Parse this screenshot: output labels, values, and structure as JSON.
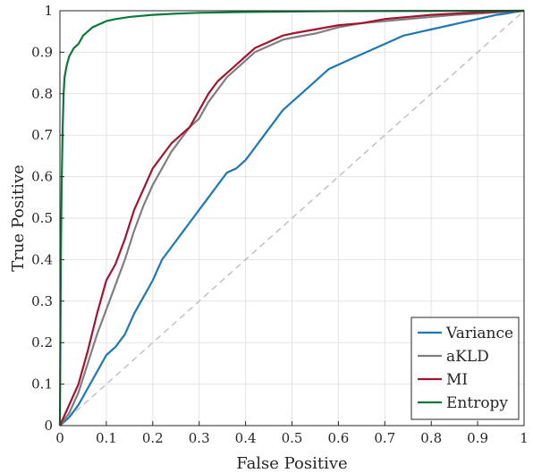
{
  "chart_data": {
    "type": "line",
    "xlabel": "False Positive",
    "ylabel": "True Positive",
    "xlim": [
      0,
      1
    ],
    "ylim": [
      0,
      1
    ],
    "x_ticks": [
      "0",
      "0.1",
      "0.2",
      "0.3",
      "0.4",
      "0.5",
      "0.6",
      "0.7",
      "0.8",
      "0.9",
      "1"
    ],
    "y_ticks": [
      "0",
      "0.1",
      "0.2",
      "0.3",
      "0.4",
      "0.5",
      "0.6",
      "0.7",
      "0.8",
      "0.9",
      "1"
    ],
    "grid": true,
    "legend_position": "bottom-right",
    "series": [
      {
        "name": "Variance",
        "color": "#1f77b4",
        "points": [
          [
            0,
            0
          ],
          [
            0.02,
            0.02
          ],
          [
            0.04,
            0.05
          ],
          [
            0.06,
            0.09
          ],
          [
            0.08,
            0.13
          ],
          [
            0.1,
            0.17
          ],
          [
            0.12,
            0.19
          ],
          [
            0.14,
            0.22
          ],
          [
            0.16,
            0.27
          ],
          [
            0.18,
            0.31
          ],
          [
            0.2,
            0.35
          ],
          [
            0.22,
            0.4
          ],
          [
            0.24,
            0.43
          ],
          [
            0.26,
            0.46
          ],
          [
            0.28,
            0.49
          ],
          [
            0.3,
            0.52
          ],
          [
            0.32,
            0.55
          ],
          [
            0.34,
            0.58
          ],
          [
            0.36,
            0.61
          ],
          [
            0.38,
            0.62
          ],
          [
            0.4,
            0.64
          ],
          [
            0.42,
            0.67
          ],
          [
            0.44,
            0.7
          ],
          [
            0.46,
            0.73
          ],
          [
            0.48,
            0.76
          ],
          [
            0.5,
            0.78
          ],
          [
            0.52,
            0.8
          ],
          [
            0.54,
            0.82
          ],
          [
            0.56,
            0.84
          ],
          [
            0.58,
            0.86
          ],
          [
            0.6,
            0.87
          ],
          [
            0.62,
            0.88
          ],
          [
            0.64,
            0.89
          ],
          [
            0.66,
            0.9
          ],
          [
            0.68,
            0.91
          ],
          [
            0.7,
            0.92
          ],
          [
            0.72,
            0.93
          ],
          [
            0.74,
            0.94
          ],
          [
            0.76,
            0.945
          ],
          [
            0.78,
            0.95
          ],
          [
            0.8,
            0.955
          ],
          [
            0.82,
            0.96
          ],
          [
            0.84,
            0.965
          ],
          [
            0.86,
            0.97
          ],
          [
            0.88,
            0.975
          ],
          [
            0.9,
            0.98
          ],
          [
            0.92,
            0.985
          ],
          [
            0.94,
            0.99
          ],
          [
            0.96,
            0.993
          ],
          [
            0.98,
            0.997
          ],
          [
            1.0,
            1.0
          ]
        ]
      },
      {
        "name": "aKLD",
        "color": "#7f7f7f",
        "points": [
          [
            0,
            0
          ],
          [
            0.02,
            0.03
          ],
          [
            0.04,
            0.08
          ],
          [
            0.06,
            0.15
          ],
          [
            0.08,
            0.22
          ],
          [
            0.1,
            0.28
          ],
          [
            0.12,
            0.34
          ],
          [
            0.14,
            0.4
          ],
          [
            0.16,
            0.47
          ],
          [
            0.18,
            0.53
          ],
          [
            0.2,
            0.58
          ],
          [
            0.22,
            0.62
          ],
          [
            0.24,
            0.66
          ],
          [
            0.26,
            0.69
          ],
          [
            0.28,
            0.72
          ],
          [
            0.3,
            0.74
          ],
          [
            0.32,
            0.78
          ],
          [
            0.34,
            0.81
          ],
          [
            0.36,
            0.84
          ],
          [
            0.38,
            0.86
          ],
          [
            0.4,
            0.88
          ],
          [
            0.42,
            0.9
          ],
          [
            0.44,
            0.91
          ],
          [
            0.46,
            0.92
          ],
          [
            0.48,
            0.93
          ],
          [
            0.5,
            0.935
          ],
          [
            0.55,
            0.945
          ],
          [
            0.6,
            0.96
          ],
          [
            0.65,
            0.97
          ],
          [
            0.7,
            0.975
          ],
          [
            0.75,
            0.98
          ],
          [
            0.8,
            0.985
          ],
          [
            0.85,
            0.99
          ],
          [
            0.9,
            0.993
          ],
          [
            0.95,
            0.997
          ],
          [
            1.0,
            1.0
          ]
        ]
      },
      {
        "name": "MI",
        "color": "#a2142f",
        "points": [
          [
            0,
            0
          ],
          [
            0.02,
            0.05
          ],
          [
            0.04,
            0.1
          ],
          [
            0.06,
            0.18
          ],
          [
            0.08,
            0.27
          ],
          [
            0.1,
            0.35
          ],
          [
            0.12,
            0.39
          ],
          [
            0.14,
            0.45
          ],
          [
            0.16,
            0.52
          ],
          [
            0.18,
            0.57
          ],
          [
            0.2,
            0.62
          ],
          [
            0.22,
            0.65
          ],
          [
            0.24,
            0.68
          ],
          [
            0.26,
            0.7
          ],
          [
            0.28,
            0.72
          ],
          [
            0.3,
            0.76
          ],
          [
            0.32,
            0.8
          ],
          [
            0.34,
            0.83
          ],
          [
            0.36,
            0.85
          ],
          [
            0.38,
            0.87
          ],
          [
            0.4,
            0.89
          ],
          [
            0.42,
            0.91
          ],
          [
            0.44,
            0.92
          ],
          [
            0.46,
            0.93
          ],
          [
            0.48,
            0.94
          ],
          [
            0.5,
            0.945
          ],
          [
            0.55,
            0.955
          ],
          [
            0.6,
            0.965
          ],
          [
            0.65,
            0.97
          ],
          [
            0.7,
            0.98
          ],
          [
            0.75,
            0.985
          ],
          [
            0.8,
            0.99
          ],
          [
            0.85,
            0.993
          ],
          [
            0.9,
            0.996
          ],
          [
            0.95,
            0.998
          ],
          [
            1.0,
            1.0
          ]
        ]
      },
      {
        "name": "Entropy",
        "color": "#0b7a3b",
        "points": [
          [
            0,
            0
          ],
          [
            0.002,
            0.4
          ],
          [
            0.004,
            0.6
          ],
          [
            0.006,
            0.72
          ],
          [
            0.008,
            0.8
          ],
          [
            0.01,
            0.84
          ],
          [
            0.015,
            0.87
          ],
          [
            0.02,
            0.89
          ],
          [
            0.03,
            0.91
          ],
          [
            0.04,
            0.92
          ],
          [
            0.05,
            0.94
          ],
          [
            0.06,
            0.95
          ],
          [
            0.07,
            0.96
          ],
          [
            0.08,
            0.965
          ],
          [
            0.1,
            0.975
          ],
          [
            0.12,
            0.98
          ],
          [
            0.15,
            0.985
          ],
          [
            0.2,
            0.99
          ],
          [
            0.25,
            0.993
          ],
          [
            0.3,
            0.995
          ],
          [
            0.4,
            0.997
          ],
          [
            0.5,
            0.998
          ],
          [
            0.6,
            0.999
          ],
          [
            0.8,
            0.9995
          ],
          [
            1.0,
            1.0
          ]
        ]
      }
    ]
  }
}
